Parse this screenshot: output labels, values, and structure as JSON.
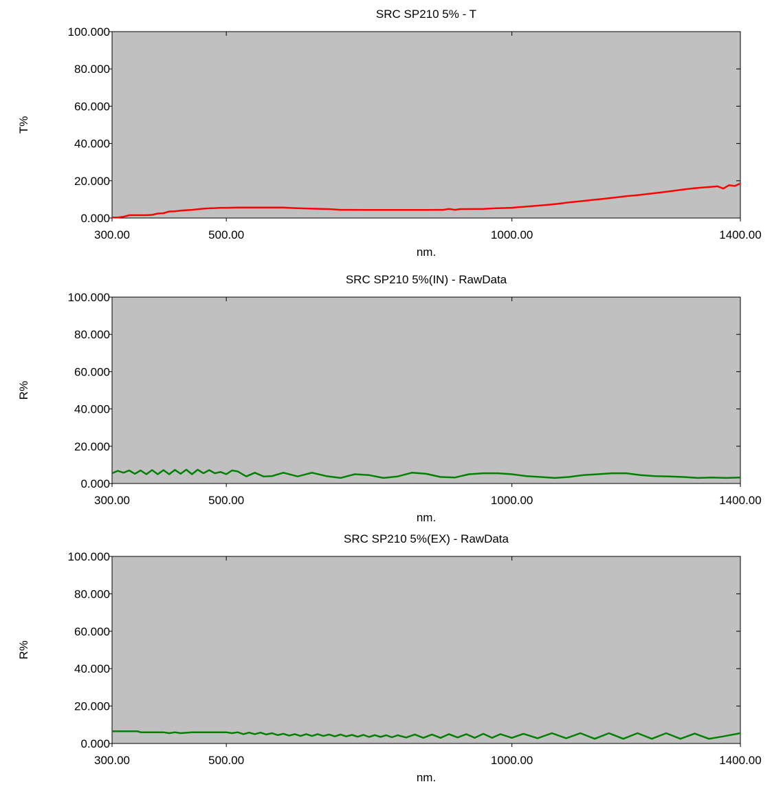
{
  "chart_data": [
    {
      "type": "line",
      "title": "SRC SP210 5% - T",
      "xlabel": "nm.",
      "ylabel": "T%",
      "xlim": [
        300,
        1400
      ],
      "ylim": [
        0,
        100
      ],
      "xticks": [
        300,
        500,
        1000,
        1400
      ],
      "xtick_labels": [
        "300.00",
        "500.00",
        "1000.00",
        "1400.00"
      ],
      "yticks": [
        0,
        20,
        40,
        60,
        80,
        100
      ],
      "ytick_labels": [
        "0.000",
        "20.000",
        "40.000",
        "60.000",
        "80.000",
        "100.000"
      ],
      "grid": false,
      "plot_background": "#c0c0c0",
      "series": [
        {
          "color": "#ff0000",
          "x": [
            300,
            310,
            320,
            330,
            350,
            360,
            370,
            380,
            390,
            400,
            410,
            420,
            430,
            440,
            450,
            460,
            470,
            480,
            490,
            500,
            520,
            550,
            600,
            620,
            650,
            680,
            700,
            750,
            800,
            850,
            880,
            890,
            900,
            910,
            950,
            970,
            1000,
            1010,
            1020,
            1040,
            1060,
            1080,
            1100,
            1120,
            1140,
            1160,
            1180,
            1200,
            1220,
            1240,
            1260,
            1280,
            1300,
            1320,
            1340,
            1360,
            1370,
            1380,
            1390,
            1400
          ],
          "y": [
            0.3,
            0.3,
            0.7,
            1.5,
            1.5,
            1.5,
            1.7,
            2.4,
            2.6,
            3.5,
            3.6,
            4.0,
            4.2,
            4.4,
            4.7,
            5.0,
            5.2,
            5.3,
            5.5,
            5.5,
            5.6,
            5.6,
            5.6,
            5.3,
            5.0,
            4.8,
            4.4,
            4.3,
            4.3,
            4.3,
            4.4,
            4.9,
            4.4,
            4.8,
            4.9,
            5.2,
            5.5,
            5.8,
            6.0,
            6.5,
            7.0,
            7.6,
            8.4,
            9.0,
            9.7,
            10.3,
            11.0,
            11.7,
            12.3,
            13.0,
            13.7,
            14.5,
            15.3,
            16.0,
            16.5,
            17.0,
            15.8,
            17.6,
            17.2,
            18.5
          ]
        }
      ]
    },
    {
      "type": "line",
      "title": "SRC SP210 5%(IN) - RawData",
      "xlabel": "nm.",
      "ylabel": "R%",
      "xlim": [
        300,
        1400
      ],
      "ylim": [
        0,
        100
      ],
      "xticks": [
        300,
        500,
        1000,
        1400
      ],
      "xtick_labels": [
        "300.00",
        "500.00",
        "1000.00",
        "1400.00"
      ],
      "yticks": [
        0,
        20,
        40,
        60,
        80,
        100
      ],
      "ytick_labels": [
        "0.000",
        "20.000",
        "40.000",
        "60.000",
        "80.000",
        "100.000"
      ],
      "grid": false,
      "plot_background": "#c0c0c0",
      "series": [
        {
          "color": "#008000",
          "x": [
            300,
            310,
            320,
            330,
            340,
            350,
            360,
            370,
            380,
            390,
            400,
            410,
            420,
            430,
            440,
            450,
            460,
            470,
            480,
            490,
            500,
            510,
            520,
            535,
            550,
            565,
            580,
            600,
            625,
            650,
            675,
            700,
            725,
            750,
            775,
            800,
            825,
            850,
            875,
            900,
            925,
            950,
            975,
            1000,
            1025,
            1050,
            1075,
            1100,
            1125,
            1150,
            1175,
            1200,
            1225,
            1250,
            1275,
            1300,
            1325,
            1350,
            1375,
            1400
          ],
          "y": [
            5.5,
            6.8,
            5.8,
            7.0,
            5.2,
            7.0,
            5.0,
            7.2,
            5.0,
            7.2,
            5.0,
            7.3,
            5.2,
            7.4,
            5.0,
            7.4,
            5.5,
            7.2,
            5.5,
            6.2,
            5.0,
            7.0,
            6.5,
            3.8,
            5.8,
            3.8,
            4.0,
            5.8,
            3.8,
            5.8,
            4.0,
            3.0,
            5.0,
            4.5,
            3.0,
            3.8,
            5.8,
            5.2,
            3.5,
            3.2,
            5.0,
            5.5,
            5.5,
            5.0,
            4.0,
            3.5,
            3.0,
            3.5,
            4.5,
            5.0,
            5.5,
            5.5,
            4.5,
            4.0,
            3.8,
            3.5,
            3.0,
            3.2,
            3.0,
            3.2
          ]
        }
      ]
    },
    {
      "type": "line",
      "title": "SRC SP210 5%(EX) - RawData",
      "xlabel": "nm.",
      "ylabel": "R%",
      "xlim": [
        300,
        1400
      ],
      "ylim": [
        0,
        100
      ],
      "xticks": [
        300,
        500,
        1000,
        1400
      ],
      "xtick_labels": [
        "300.00",
        "500.00",
        "1000.00",
        "1400.00"
      ],
      "yticks": [
        0,
        20,
        40,
        60,
        80,
        100
      ],
      "ytick_labels": [
        "0.000",
        "20.000",
        "40.000",
        "60.000",
        "80.000",
        "100.000"
      ],
      "grid": false,
      "plot_background": "#c0c0c0",
      "series": [
        {
          "color": "#008000",
          "x": [
            300,
            345,
            350,
            390,
            400,
            410,
            420,
            440,
            480,
            500,
            510,
            520,
            530,
            540,
            550,
            560,
            570,
            580,
            590,
            600,
            610,
            620,
            630,
            640,
            650,
            660,
            670,
            680,
            690,
            700,
            710,
            720,
            730,
            740,
            750,
            760,
            770,
            780,
            790,
            800,
            815,
            830,
            845,
            860,
            875,
            890,
            905,
            920,
            935,
            950,
            965,
            980,
            1000,
            1020,
            1045,
            1070,
            1095,
            1120,
            1145,
            1170,
            1195,
            1220,
            1245,
            1270,
            1295,
            1320,
            1345,
            1370,
            1400
          ],
          "y": [
            6.5,
            6.5,
            6.0,
            6.0,
            5.5,
            6.0,
            5.5,
            6.0,
            6.0,
            6.0,
            5.5,
            6.0,
            5.0,
            5.8,
            5.0,
            5.8,
            4.8,
            5.5,
            4.5,
            5.2,
            4.2,
            5.0,
            4.0,
            5.0,
            4.0,
            5.0,
            4.0,
            4.8,
            3.8,
            4.8,
            3.8,
            4.6,
            3.6,
            4.6,
            3.5,
            4.5,
            3.5,
            4.4,
            3.3,
            4.4,
            3.2,
            4.8,
            3.0,
            4.8,
            3.0,
            5.0,
            3.2,
            5.0,
            3.0,
            5.2,
            3.0,
            5.0,
            3.0,
            5.2,
            2.8,
            5.5,
            2.8,
            5.5,
            2.5,
            5.5,
            2.5,
            5.5,
            2.5,
            5.5,
            2.5,
            5.3,
            2.5,
            3.8,
            5.5
          ]
        }
      ]
    }
  ]
}
